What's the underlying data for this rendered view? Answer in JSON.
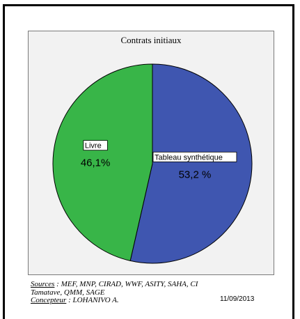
{
  "chart_data": {
    "type": "pie",
    "title": "Contrats initiaux",
    "slices": [
      {
        "label": "Tableau synthétique",
        "value": 53.2,
        "value_label": "53,2 %",
        "color": "#3f56b0"
      },
      {
        "label": "Livre",
        "value": 46.1,
        "value_label": "46,1%",
        "color": "#38b548"
      }
    ]
  },
  "footer": {
    "sources_label": "Sources",
    "sources_text": "   : MEF, MNP, CIRAD, WWF, ASITY, SAHA, CI",
    "sources_text2": "Tamatave, QMM, SAGE",
    "designer_label": "Concepteur",
    "designer_text": " : LOHANIVO A.",
    "date": "11/09/2013"
  }
}
